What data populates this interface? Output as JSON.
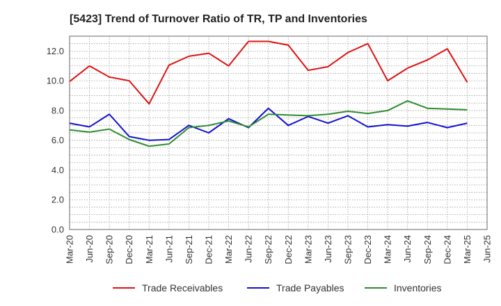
{
  "chart_data": {
    "type": "line",
    "title": "[5423]  Trend of Turnover Ratio of TR, TP and Inventories",
    "xlabel": "",
    "ylabel": "",
    "ylim": [
      0,
      13
    ],
    "yticks": [
      "0.0",
      "2.0",
      "4.0",
      "6.0",
      "8.0",
      "10.0",
      "12.0"
    ],
    "x_tick_labels": [
      "Mar-20",
      "Jun-20",
      "Sep-20",
      "Dec-20",
      "Mar-21",
      "Jun-21",
      "Sep-21",
      "Dec-21",
      "Mar-22",
      "Jun-22",
      "Sep-22",
      "Dec-22",
      "Mar-23",
      "Jun-23",
      "Sep-23",
      "Dec-23",
      "Mar-24",
      "Jun-24",
      "Sep-24",
      "Dec-24",
      "Mar-25",
      "Jun-25"
    ],
    "grid": true,
    "legend_position": "bottom",
    "series": [
      {
        "name": "Trade Receivables",
        "color": "#e01010",
        "values": [
          9.95,
          11.0,
          10.25,
          10.0,
          8.45,
          11.05,
          11.65,
          11.85,
          11.0,
          12.65,
          12.65,
          12.4,
          10.7,
          10.95,
          11.9,
          12.5,
          10.0,
          10.85,
          11.4,
          12.15,
          9.9
        ]
      },
      {
        "name": "Trade Payables",
        "color": "#1010d0",
        "values": [
          7.15,
          6.9,
          7.75,
          6.25,
          6.0,
          6.05,
          7.0,
          6.5,
          7.45,
          6.85,
          8.15,
          7.0,
          7.6,
          7.15,
          7.65,
          6.9,
          7.05,
          6.95,
          7.2,
          6.85,
          7.15
        ]
      },
      {
        "name": "Inventories",
        "color": "#2e8b2e",
        "values": [
          6.7,
          6.55,
          6.75,
          6.05,
          5.6,
          5.75,
          6.85,
          7.0,
          7.3,
          6.9,
          7.75,
          7.7,
          7.65,
          7.75,
          7.95,
          7.8,
          8.0,
          8.65,
          8.15,
          8.1,
          8.05
        ]
      }
    ]
  }
}
